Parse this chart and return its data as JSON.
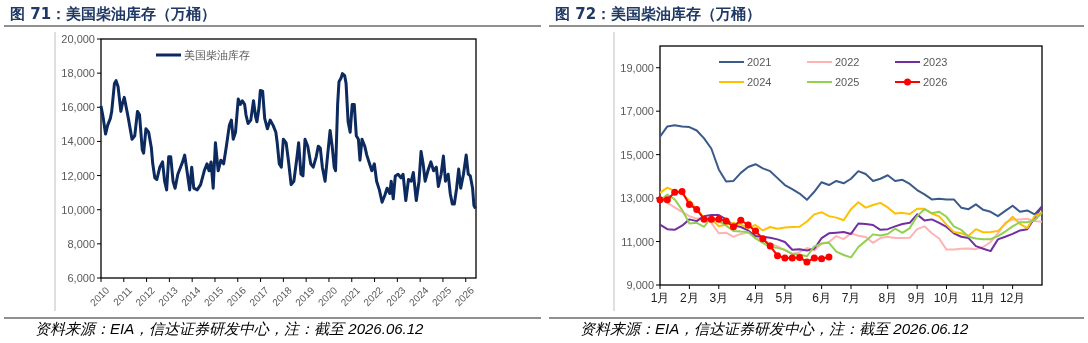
{
  "chart_data": [
    {
      "type": "line",
      "title": "图 71：美国柴油库存（万桶）",
      "legend": "top left",
      "xlim": [
        2010,
        2026.45
      ],
      "xticks": [
        2010,
        2011,
        2012,
        2013,
        2014,
        2015,
        2016,
        2017,
        2018,
        2019,
        2020,
        2021,
        2022,
        2023,
        2024,
        2025,
        2026
      ],
      "ylim": [
        6000,
        20000
      ],
      "yticks": [
        {
          "value": 6000,
          "label": "6,000"
        },
        {
          "value": 8000,
          "label": "8,000"
        },
        {
          "value": 10000,
          "label": "10,000"
        },
        {
          "value": 12000,
          "label": "12,000"
        },
        {
          "value": 14000,
          "label": "14,000"
        },
        {
          "value": 16000,
          "label": "16,000"
        },
        {
          "value": 18000,
          "label": "18,000"
        },
        {
          "value": 20000,
          "label": "20,000"
        }
      ],
      "grid": false,
      "annotations": [
        "资料来源：EIA，信达证券研发中心，注：截至 2026.06.12"
      ],
      "series": [
        {
          "name": "美国柴油库存",
          "color": "#0c2a5e",
          "x": [
            2010.0,
            2010.1,
            2010.2,
            2010.29,
            2010.41,
            2010.47,
            2010.59,
            2010.66,
            2010.75,
            2010.87,
            2010.93,
            2011.02,
            2011.11,
            2011.2,
            2011.36,
            2011.48,
            2011.6,
            2011.69,
            2011.81,
            2011.87,
            2011.97,
            2012.09,
            2012.21,
            2012.27,
            2012.36,
            2012.45,
            2012.58,
            2012.7,
            2012.79,
            2012.88,
            2012.97,
            2013.06,
            2013.16,
            2013.25,
            2013.37,
            2013.49,
            2013.58,
            2013.67,
            2013.77,
            2013.89,
            2013.98,
            2014.07,
            2014.22,
            2014.37,
            2014.53,
            2014.65,
            2014.74,
            2014.83,
            2014.92,
            2015.02,
            2015.14,
            2015.26,
            2015.38,
            2015.5,
            2015.63,
            2015.72,
            2015.8,
            2015.9,
            2016.02,
            2016.11,
            2016.2,
            2016.3,
            2016.36,
            2016.45,
            2016.57,
            2016.69,
            2016.78,
            2016.84,
            2016.93,
            2016.99,
            2017.09,
            2017.18,
            2017.3,
            2017.42,
            2017.55,
            2017.67,
            2017.73,
            2017.82,
            2017.91,
            2018.0,
            2018.12,
            2018.22,
            2018.34,
            2018.46,
            2018.58,
            2018.67,
            2018.77,
            2018.86,
            2018.95,
            2019.07,
            2019.2,
            2019.31,
            2019.44,
            2019.53,
            2019.62,
            2019.71,
            2019.83,
            2019.95,
            2020.05,
            2020.14,
            2020.23,
            2020.29,
            2020.38,
            2020.44,
            2020.53,
            2020.59,
            2020.69,
            2020.75,
            2020.84,
            2020.93,
            2021.02,
            2021.11,
            2021.2,
            2021.29,
            2021.36,
            2021.45,
            2021.57,
            2021.66,
            2021.78,
            2021.88,
            2021.99,
            2022.09,
            2022.21,
            2022.33,
            2022.45,
            2022.55,
            2022.67,
            2022.73,
            2022.82,
            2022.91,
            2023.03,
            2023.16,
            2023.25,
            2023.37,
            2023.49,
            2023.61,
            2023.7,
            2023.83,
            2023.95,
            2024.04,
            2024.13,
            2024.22,
            2024.34,
            2024.47,
            2024.59,
            2024.71,
            2024.8,
            2024.92,
            2025.02,
            2025.11,
            2025.23,
            2025.32,
            2025.41,
            2025.5,
            2025.6,
            2025.69,
            2025.78,
            2025.9,
            2026.02,
            2026.11,
            2026.2,
            2026.3,
            2026.36,
            2026.43
          ],
          "values": [
            16070,
            15350,
            14430,
            14940,
            15350,
            15760,
            17400,
            17560,
            17200,
            15760,
            16170,
            16580,
            15970,
            15350,
            14130,
            14330,
            15760,
            15560,
            13510,
            13310,
            14740,
            14540,
            13610,
            12690,
            11870,
            11770,
            12490,
            12800,
            11670,
            11160,
            13100,
            13100,
            11670,
            11260,
            12080,
            12490,
            12800,
            13200,
            12280,
            11160,
            12490,
            11260,
            11160,
            11470,
            12280,
            12690,
            12280,
            12800,
            11260,
            13920,
            12280,
            12900,
            12690,
            13720,
            14940,
            15250,
            14130,
            14540,
            16480,
            16170,
            16380,
            16170,
            15560,
            15050,
            15250,
            16380,
            15460,
            15150,
            15970,
            16990,
            16950,
            15350,
            14740,
            15250,
            14940,
            14540,
            13920,
            12690,
            12490,
            14130,
            13920,
            12900,
            11470,
            11670,
            12900,
            13920,
            12080,
            11980,
            14130,
            13720,
            12690,
            12490,
            13100,
            13720,
            13610,
            12490,
            11670,
            13310,
            14640,
            13720,
            12490,
            12280,
            16170,
            17500,
            17710,
            17970,
            17850,
            17400,
            15150,
            14540,
            16170,
            16170,
            14330,
            14130,
            12900,
            14130,
            13720,
            13200,
            12690,
            12280,
            12690,
            11670,
            11160,
            10440,
            10850,
            11260,
            10950,
            11670,
            10640,
            11980,
            12080,
            11870,
            12080,
            10540,
            11770,
            11670,
            12180,
            10540,
            11670,
            13410,
            12690,
            11670,
            12280,
            12800,
            12280,
            12490,
            11360,
            12080,
            13140,
            11670,
            12080,
            10950,
            10340,
            10340,
            11260,
            12380,
            11260,
            12080,
            13200,
            12080,
            11980,
            11260,
            10240,
            10070
          ]
        }
      ]
    },
    {
      "type": "line",
      "title": "图 72：美国柴油库存（万桶）",
      "legend": "top",
      "categories": [
        "1月",
        null,
        null,
        null,
        "2月",
        null,
        null,
        null,
        "3月",
        null,
        null,
        null,
        null,
        "4月",
        null,
        null,
        null,
        "5月",
        null,
        null,
        null,
        null,
        "6月",
        null,
        null,
        null,
        "7月",
        null,
        null,
        null,
        null,
        "8月",
        null,
        null,
        null,
        "9月",
        null,
        null,
        null,
        "10月",
        null,
        null,
        null,
        null,
        "11月",
        null,
        null,
        null,
        "12月",
        null,
        null,
        null,
        null
      ],
      "ylim": [
        9000,
        20000
      ],
      "yticks": [
        {
          "value": 9000,
          "label": "9,000"
        },
        {
          "value": 11000,
          "label": "11,000"
        },
        {
          "value": 13000,
          "label": "13,000"
        },
        {
          "value": 15000,
          "label": "15,000"
        },
        {
          "value": 17000,
          "label": "17,000"
        },
        {
          "value": 19000,
          "label": "19,000"
        }
      ],
      "grid": false,
      "annotations": [
        "资料来源：EIA，信达证券研发中心，注：截至 2026.06.12"
      ],
      "series": [
        {
          "name": "2021",
          "color": "#3b5a8c",
          "values": [
            15830,
            16300,
            16350,
            16290,
            16270,
            16110,
            15750,
            15270,
            14320,
            13760,
            13790,
            14160,
            14430,
            14560,
            14370,
            14240,
            13920,
            13600,
            13410,
            13210,
            12920,
            13290,
            13730,
            13600,
            13790,
            13680,
            13890,
            14240,
            14110,
            13790,
            13890,
            14050,
            13790,
            13840,
            13650,
            13370,
            13170,
            12940,
            12970,
            12940,
            12940,
            12560,
            12490,
            12710,
            12460,
            12370,
            12170,
            12410,
            12650,
            12370,
            12430,
            12250,
            12620
          ]
        },
        {
          "name": "2022",
          "color": "#ffb3b3",
          "values": [
            12970,
            12780,
            12570,
            12370,
            12170,
            12050,
            12100,
            11860,
            11380,
            11410,
            11220,
            11350,
            11410,
            11220,
            11060,
            10910,
            10780,
            10590,
            10430,
            10510,
            10700,
            10590,
            10910,
            10980,
            11250,
            11110,
            11380,
            11270,
            11210,
            10940,
            11160,
            11220,
            11160,
            11160,
            11170,
            11570,
            11700,
            11380,
            11140,
            10630,
            10630,
            10670,
            10680,
            10650,
            10750,
            10980,
            11380,
            11860,
            12020,
            12020,
            12050,
            11940,
            11910
          ]
        },
        {
          "name": "2023",
          "color": "#7030a0",
          "values": [
            11780,
            11570,
            11540,
            11730,
            12020,
            11940,
            12170,
            12220,
            12220,
            12020,
            11750,
            11670,
            11510,
            11250,
            11220,
            11170,
            11100,
            10980,
            10620,
            10650,
            10590,
            10670,
            11160,
            11380,
            11410,
            11440,
            11350,
            11830,
            11810,
            11760,
            11540,
            11570,
            11700,
            11810,
            11860,
            12250,
            11970,
            12020,
            11860,
            11670,
            11380,
            11220,
            11160,
            10790,
            10670,
            10560,
            11100,
            11220,
            11350,
            11510,
            11570,
            12100,
            12620
          ]
        },
        {
          "name": "2024",
          "color": "#ffc000",
          "values": [
            13240,
            13480,
            13320,
            13190,
            12890,
            12490,
            12100,
            12050,
            11700,
            11780,
            11860,
            11780,
            11620,
            11760,
            11510,
            11670,
            11590,
            11650,
            11670,
            11680,
            11920,
            12250,
            12350,
            12170,
            12100,
            11980,
            12490,
            12810,
            12560,
            12680,
            12780,
            12570,
            12290,
            12320,
            12270,
            12510,
            12510,
            12290,
            12160,
            11780,
            11440,
            11380,
            11270,
            11570,
            11430,
            11440,
            11480,
            11810,
            12140,
            11810,
            11620,
            12170,
            12350
          ]
        },
        {
          "name": "2025",
          "color": "#92d050",
          "values": [
            12890,
            13160,
            12940,
            12460,
            11830,
            11860,
            11680,
            12130,
            11940,
            11730,
            11490,
            11460,
            11440,
            11140,
            10940,
            10750,
            10710,
            10620,
            10430,
            10400,
            10320,
            10780,
            10910,
            10940,
            10540,
            10380,
            10270,
            10750,
            11030,
            11330,
            11280,
            11350,
            11590,
            11400,
            11620,
            12170,
            12490,
            12300,
            12370,
            12140,
            11700,
            11540,
            11220,
            11140,
            11110,
            11110,
            11250,
            11460,
            11700,
            11890,
            11890,
            11980,
            12330
          ]
        },
        {
          "name": "2026",
          "color": "#ff0000",
          "marker": "circle",
          "values": [
            12920,
            12920,
            13270,
            13300,
            12710,
            12480,
            12030,
            12030,
            12030,
            11940,
            11680,
            11980,
            11760,
            11480,
            11130,
            10790,
            10350,
            10240,
            10240,
            10270,
            10060,
            10240,
            10210,
            10290,
            null,
            null,
            null,
            null,
            null,
            null,
            null,
            null,
            null,
            null,
            null,
            null,
            null,
            null,
            null,
            null,
            null,
            null,
            null,
            null,
            null,
            null,
            null,
            null,
            null,
            null,
            null,
            null,
            null
          ]
        }
      ]
    }
  ]
}
